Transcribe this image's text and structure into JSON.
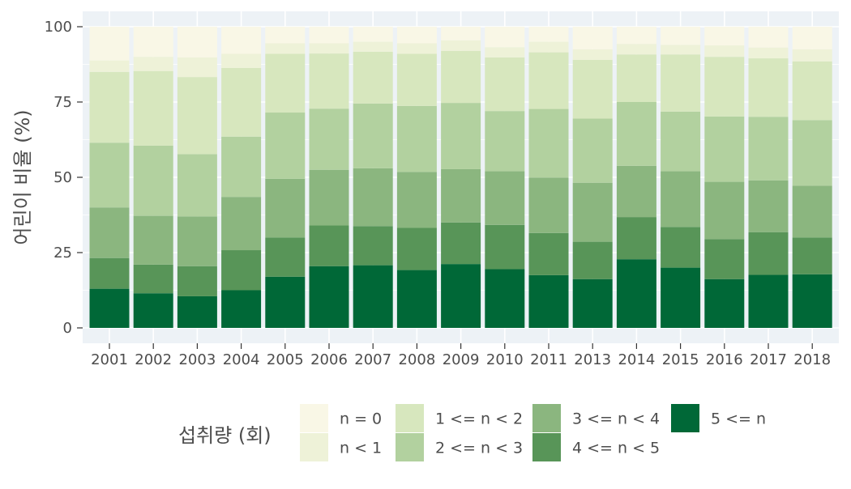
{
  "chart_data": {
    "type": "bar",
    "stacked": true,
    "normalized": true,
    "title": "",
    "xlabel": "",
    "ylabel": "어린이 비율 (%)",
    "ylim": [
      0,
      100
    ],
    "yticks": [
      0,
      25,
      50,
      75,
      100
    ],
    "grid": true,
    "legend_position": "bottom",
    "legend_title": "섭취량 (회)",
    "categories": [
      "2001",
      "2002",
      "2003",
      "2004",
      "2005",
      "2006",
      "2007",
      "2008",
      "2009",
      "2010",
      "2011",
      "2013",
      "2014",
      "2015",
      "2016",
      "2017",
      "2018"
    ],
    "series": [
      {
        "name": "5 <= n",
        "color": "#006837",
        "values": [
          13.0,
          11.5,
          10.5,
          12.5,
          17.0,
          20.5,
          20.8,
          19.2,
          21.2,
          19.5,
          17.5,
          16.2,
          22.8,
          20.0,
          16.2,
          17.6,
          17.8
        ]
      },
      {
        "name": "4 <= n < 5",
        "color": "#589558",
        "values": [
          10.2,
          9.5,
          10.0,
          13.3,
          13.0,
          13.5,
          13.0,
          14.0,
          13.8,
          14.7,
          14.0,
          12.4,
          14.0,
          13.5,
          13.3,
          14.2,
          12.2
        ]
      },
      {
        "name": "3 <= n < 4",
        "color": "#8bb67f",
        "values": [
          16.8,
          16.2,
          16.5,
          17.7,
          19.5,
          18.5,
          19.2,
          18.6,
          17.7,
          17.8,
          18.4,
          19.6,
          17.0,
          18.5,
          19.0,
          17.2,
          17.2
        ]
      },
      {
        "name": "2 <= n < 3",
        "color": "#b2d19f",
        "values": [
          21.5,
          23.3,
          20.7,
          20.0,
          22.0,
          20.3,
          21.5,
          21.9,
          22.0,
          20.0,
          22.8,
          21.3,
          21.2,
          19.8,
          21.7,
          21.1,
          21.8
        ]
      },
      {
        "name": "1 <= n < 2",
        "color": "#d7e7be",
        "values": [
          23.5,
          24.8,
          25.6,
          22.8,
          19.5,
          18.3,
          17.2,
          17.3,
          17.3,
          17.8,
          18.8,
          19.5,
          15.8,
          19.0,
          19.8,
          19.4,
          19.5
        ]
      },
      {
        "name": "n < 1",
        "color": "#eef2d8",
        "values": [
          3.8,
          4.7,
          6.5,
          4.7,
          3.5,
          3.4,
          3.3,
          3.5,
          3.5,
          3.4,
          3.5,
          3.5,
          3.5,
          3.2,
          3.8,
          3.6,
          4.0
        ]
      },
      {
        "name": "n = 0",
        "color": "#f9f7e6",
        "values": [
          11.2,
          10.0,
          10.2,
          9.0,
          5.5,
          5.5,
          5.0,
          5.5,
          4.5,
          6.8,
          5.0,
          7.5,
          5.7,
          6.0,
          6.2,
          6.9,
          7.5
        ]
      }
    ],
    "legend_order": [
      "n = 0",
      "n < 1",
      "1 <= n < 2",
      "2 <= n < 3",
      "3 <= n < 4",
      "4 <= n < 5",
      "5 <= n"
    ]
  },
  "colors": {
    "panel_background": "#edf2f6",
    "grid": "#ffffff",
    "text": "#4d4d4d",
    "axis_tick": "#333333"
  }
}
